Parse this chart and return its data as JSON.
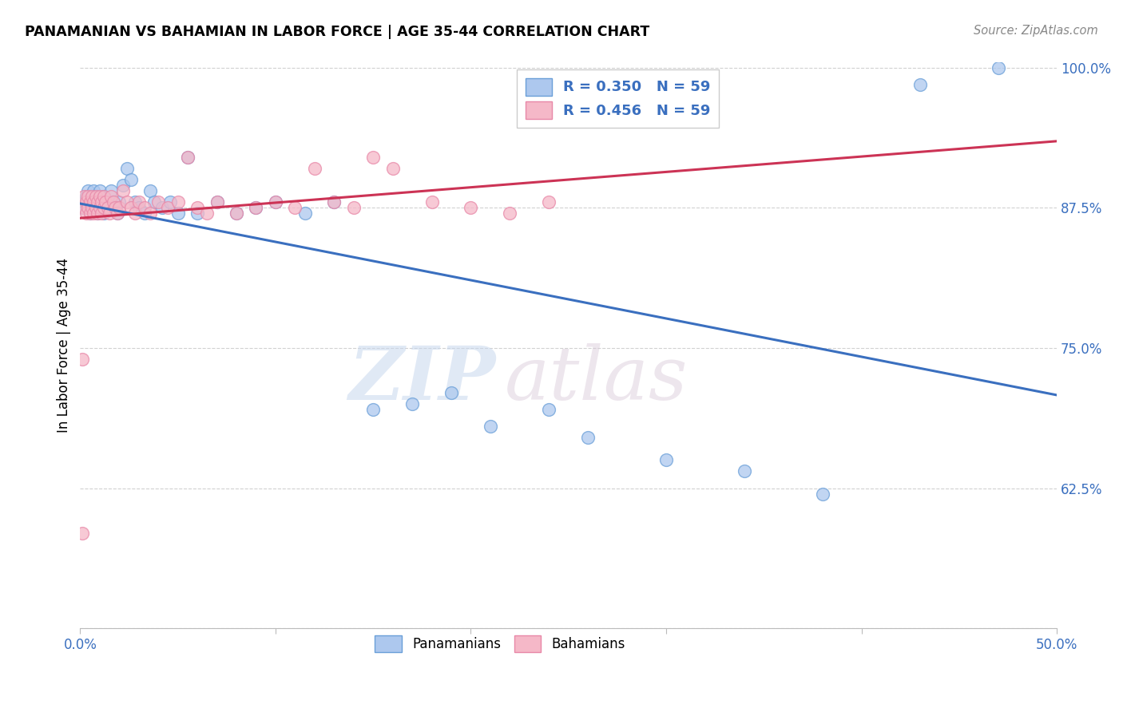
{
  "title": "PANAMANIAN VS BAHAMIAN IN LABOR FORCE | AGE 35-44 CORRELATION CHART",
  "source": "Source: ZipAtlas.com",
  "ylabel": "In Labor Force | Age 35-44",
  "xlim": [
    0.0,
    0.5
  ],
  "ylim": [
    0.5,
    1.005
  ],
  "xtick_positions": [
    0.0,
    0.1,
    0.2,
    0.3,
    0.4,
    0.5
  ],
  "xtick_labels": [
    "0.0%",
    "",
    "",
    "",
    "",
    "50.0%"
  ],
  "ytick_positions": [
    0.5,
    0.625,
    0.75,
    0.875,
    1.0
  ],
  "ytick_labels": [
    "",
    "62.5%",
    "75.0%",
    "87.5%",
    "100.0%"
  ],
  "blue_face": "#adc8ee",
  "blue_edge": "#6a9fd8",
  "pink_face": "#f5b8c8",
  "pink_edge": "#e888a8",
  "blue_line": "#3a6fbf",
  "pink_line": "#cc3355",
  "legend_blue": "R = 0.350   N = 59",
  "legend_pink": "R = 0.456   N = 59",
  "bottom_blue": "Panamanians",
  "bottom_pink": "Bahamians",
  "watermark_zip": "ZIP",
  "watermark_atlas": "atlas",
  "blue_x": [
    0.001,
    0.002,
    0.003,
    0.004,
    0.004,
    0.005,
    0.005,
    0.006,
    0.006,
    0.007,
    0.007,
    0.008,
    0.008,
    0.009,
    0.009,
    0.01,
    0.01,
    0.011,
    0.011,
    0.012,
    0.012,
    0.013,
    0.014,
    0.015,
    0.016,
    0.017,
    0.018,
    0.019,
    0.02,
    0.022,
    0.024,
    0.026,
    0.028,
    0.03,
    0.033,
    0.036,
    0.038,
    0.042,
    0.046,
    0.05,
    0.055,
    0.06,
    0.07,
    0.08,
    0.09,
    0.1,
    0.115,
    0.13,
    0.15,
    0.17,
    0.19,
    0.21,
    0.24,
    0.26,
    0.3,
    0.34,
    0.38,
    0.43,
    0.47
  ],
  "blue_y": [
    0.875,
    0.88,
    0.885,
    0.89,
    0.875,
    0.88,
    0.87,
    0.885,
    0.875,
    0.89,
    0.88,
    0.875,
    0.885,
    0.87,
    0.875,
    0.88,
    0.89,
    0.875,
    0.88,
    0.885,
    0.87,
    0.875,
    0.88,
    0.875,
    0.89,
    0.88,
    0.875,
    0.87,
    0.88,
    0.895,
    0.91,
    0.9,
    0.88,
    0.875,
    0.87,
    0.89,
    0.88,
    0.875,
    0.88,
    0.87,
    0.92,
    0.87,
    0.88,
    0.87,
    0.875,
    0.88,
    0.87,
    0.88,
    0.695,
    0.7,
    0.71,
    0.68,
    0.695,
    0.67,
    0.65,
    0.64,
    0.62,
    0.985,
    1.0
  ],
  "pink_x": [
    0.001,
    0.002,
    0.002,
    0.003,
    0.003,
    0.004,
    0.004,
    0.005,
    0.005,
    0.006,
    0.006,
    0.007,
    0.007,
    0.008,
    0.008,
    0.009,
    0.009,
    0.01,
    0.01,
    0.011,
    0.011,
    0.012,
    0.012,
    0.013,
    0.014,
    0.015,
    0.016,
    0.017,
    0.018,
    0.019,
    0.02,
    0.022,
    0.024,
    0.026,
    0.028,
    0.03,
    0.033,
    0.036,
    0.04,
    0.045,
    0.05,
    0.055,
    0.06,
    0.065,
    0.07,
    0.08,
    0.09,
    0.1,
    0.11,
    0.12,
    0.13,
    0.14,
    0.15,
    0.16,
    0.18,
    0.2,
    0.22,
    0.24,
    0.001
  ],
  "pink_y": [
    0.585,
    0.875,
    0.885,
    0.88,
    0.87,
    0.885,
    0.875,
    0.88,
    0.87,
    0.875,
    0.885,
    0.88,
    0.87,
    0.875,
    0.885,
    0.88,
    0.87,
    0.875,
    0.885,
    0.88,
    0.87,
    0.875,
    0.885,
    0.88,
    0.875,
    0.87,
    0.885,
    0.88,
    0.875,
    0.87,
    0.875,
    0.89,
    0.88,
    0.875,
    0.87,
    0.88,
    0.875,
    0.87,
    0.88,
    0.875,
    0.88,
    0.92,
    0.875,
    0.87,
    0.88,
    0.87,
    0.875,
    0.88,
    0.875,
    0.91,
    0.88,
    0.875,
    0.92,
    0.91,
    0.88,
    0.875,
    0.87,
    0.88,
    0.74
  ]
}
